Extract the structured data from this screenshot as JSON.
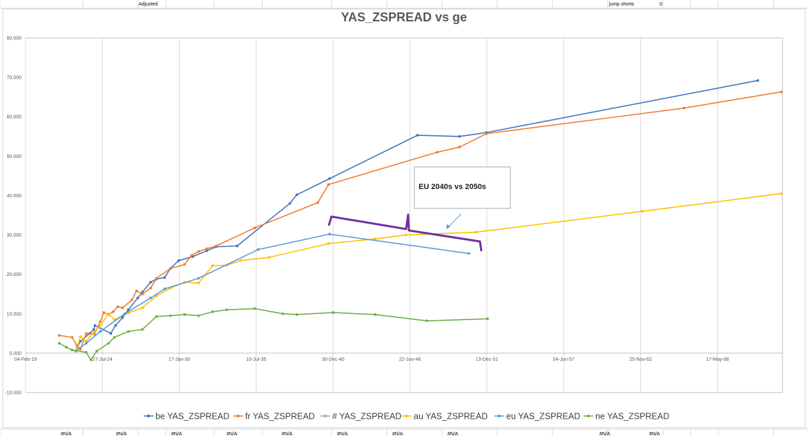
{
  "sheet": {
    "top_cells": [
      "Adjusted",
      "jump shorts",
      "0"
    ],
    "bottom_cells": [
      "#N/A",
      "#N/A",
      "#N/A",
      "#N/A",
      "#N/A",
      "#N/A",
      "#N/A",
      "#N/A",
      "#N/A",
      "#N/A"
    ]
  },
  "chart_data": {
    "type": "line",
    "title": "YAS_ZSPREAD vs ge",
    "xlabel": "",
    "ylabel": "",
    "xlim": [
      "2019-02-04",
      "2073-01-01"
    ],
    "ylim": [
      -10,
      80
    ],
    "x_tick_labels": [
      "04-Feb-19",
      "27-Jul-24",
      "17-Jan-30",
      "10-Jul-35",
      "30-Dec-40",
      "22-Jun-46",
      "13-Dec-51",
      "04-Jun-57",
      "25-Nov-62",
      "17-May-68"
    ],
    "x_ticks": [
      "2019-02-04",
      "2024-07-27",
      "2030-01-17",
      "2035-07-10",
      "2040-12-30",
      "2046-06-22",
      "2051-12-13",
      "2057-06-04",
      "2062-11-25",
      "2068-05-17"
    ],
    "y_tick_labels": [
      "-10.000",
      "0.000",
      "10.000",
      "20.000",
      "30.000",
      "40.000",
      "50.000",
      "60.000",
      "70.000",
      "80.000"
    ],
    "y_ticks": [
      -10,
      0,
      10,
      20,
      30,
      40,
      50,
      60,
      70,
      80
    ],
    "grid": "vertical",
    "legend_position": "bottom",
    "series": [
      {
        "name": "be YAS_ZSPREAD",
        "color": "#4472C4",
        "points": [
          [
            "2022-10-15",
            1.5
          ],
          [
            "2023-01-01",
            3.0
          ],
          [
            "2023-09-01",
            5.0
          ],
          [
            "2023-12-15",
            6.0
          ],
          [
            "2024-01-15",
            7.0
          ],
          [
            "2025-03-01",
            5.0
          ],
          [
            "2025-07-01",
            7.0
          ],
          [
            "2026-01-01",
            9.0
          ],
          [
            "2026-06-01",
            11.0
          ],
          [
            "2027-02-01",
            14.0
          ],
          [
            "2027-06-01",
            15.5
          ],
          [
            "2028-01-01",
            18.0
          ],
          [
            "2028-06-01",
            18.8
          ],
          [
            "2029-01-01",
            19.2
          ],
          [
            "2029-06-01",
            21.5
          ],
          [
            "2030-01-01",
            23.5
          ],
          [
            "2031-01-01",
            24.5
          ],
          [
            "2032-01-01",
            26.0
          ],
          [
            "2032-09-01",
            27.0
          ],
          [
            "2034-03-01",
            27.2
          ],
          [
            "2037-12-01",
            38.0
          ],
          [
            "2038-06-01",
            40.2
          ],
          [
            "2040-10-01",
            44.3
          ],
          [
            "2047-01-01",
            55.3
          ],
          [
            "2050-01-01",
            55.0
          ],
          [
            "2051-12-01",
            56.0
          ],
          [
            "2071-04-01",
            69.2
          ]
        ]
      },
      {
        "name": "fr YAS_ZSPREAD",
        "color": "#ED7D31",
        "points": [
          [
            "2021-07-01",
            4.5
          ],
          [
            "2022-06-01",
            4.0
          ],
          [
            "2022-10-01",
            2.0
          ],
          [
            "2023-01-01",
            1.0
          ],
          [
            "2023-06-01",
            5.0
          ],
          [
            "2024-01-01",
            4.8
          ],
          [
            "2024-06-01",
            8.0
          ],
          [
            "2024-09-01",
            10.3
          ],
          [
            "2025-01-01",
            9.8
          ],
          [
            "2025-05-01",
            10.5
          ],
          [
            "2025-09-01",
            11.8
          ],
          [
            "2026-01-01",
            11.5
          ],
          [
            "2026-09-01",
            13.5
          ],
          [
            "2027-01-01",
            15.8
          ],
          [
            "2027-06-01",
            15.0
          ],
          [
            "2028-01-01",
            16.5
          ],
          [
            "2028-06-01",
            19.0
          ],
          [
            "2029-06-01",
            21.5
          ],
          [
            "2030-06-01",
            22.5
          ],
          [
            "2030-12-01",
            24.8
          ],
          [
            "2031-06-01",
            25.8
          ],
          [
            "2032-01-01",
            26.5
          ],
          [
            "2032-09-01",
            27.2
          ],
          [
            "2035-06-01",
            31.8
          ],
          [
            "2039-12-01",
            38.2
          ],
          [
            "2040-09-01",
            42.8
          ],
          [
            "2048-06-01",
            51.0
          ],
          [
            "2050-01-01",
            52.3
          ],
          [
            "2051-12-01",
            55.7
          ],
          [
            "2066-01-01",
            62.2
          ],
          [
            "2072-12-01",
            66.3
          ]
        ]
      },
      {
        "name": "# YAS_ZSPREAD",
        "color": "#A5A5A5",
        "points": []
      },
      {
        "name": "au YAS_ZSPREAD",
        "color": "#FFC000",
        "points": [
          [
            "2022-10-01",
            1.0
          ],
          [
            "2023-01-01",
            4.2
          ],
          [
            "2023-06-01",
            3.0
          ],
          [
            "2024-01-01",
            5.5
          ],
          [
            "2024-06-01",
            7.0
          ],
          [
            "2025-01-01",
            10.0
          ],
          [
            "2025-06-01",
            8.5
          ],
          [
            "2026-06-01",
            10.2
          ],
          [
            "2027-06-01",
            11.5
          ],
          [
            "2028-06-01",
            14.5
          ],
          [
            "2029-06-01",
            16.5
          ],
          [
            "2030-06-01",
            18.0
          ],
          [
            "2031-06-01",
            17.8
          ],
          [
            "2032-06-01",
            22.2
          ],
          [
            "2033-06-01",
            22.3
          ],
          [
            "2034-06-01",
            23.5
          ],
          [
            "2036-06-01",
            24.3
          ],
          [
            "2040-09-01",
            27.8
          ],
          [
            "2044-01-01",
            29.0
          ],
          [
            "2046-03-01",
            30.0
          ],
          [
            "2051-03-01",
            30.7
          ],
          [
            "2063-01-01",
            36.0
          ],
          [
            "2072-12-01",
            40.5
          ]
        ]
      },
      {
        "name": "eu YAS_ZSPREAD",
        "color": "#5B9BD5",
        "points": [
          [
            "2022-09-01",
            0.5
          ],
          [
            "2023-06-01",
            2.5
          ],
          [
            "2024-06-01",
            5.5
          ],
          [
            "2026-03-01",
            10.0
          ],
          [
            "2028-01-01",
            14.0
          ],
          [
            "2029-01-01",
            16.3
          ],
          [
            "2031-06-01",
            19.0
          ],
          [
            "2035-09-01",
            26.3
          ],
          [
            "2040-10-01",
            30.2
          ],
          [
            "2050-09-01",
            25.3
          ]
        ]
      },
      {
        "name": "ne YAS_ZSPREAD",
        "color": "#70AD47",
        "points": [
          [
            "2021-07-01",
            2.5
          ],
          [
            "2022-01-01",
            1.5
          ],
          [
            "2022-06-01",
            0.8
          ],
          [
            "2023-06-01",
            0.2
          ],
          [
            "2023-10-01",
            -1.7
          ],
          [
            "2024-03-01",
            0.5
          ],
          [
            "2025-01-01",
            2.5
          ],
          [
            "2025-06-01",
            4.0
          ],
          [
            "2026-06-01",
            5.5
          ],
          [
            "2027-06-01",
            6.0
          ],
          [
            "2028-06-01",
            9.3
          ],
          [
            "2029-06-01",
            9.5
          ],
          [
            "2030-06-01",
            9.8
          ],
          [
            "2031-06-01",
            9.5
          ],
          [
            "2032-06-01",
            10.5
          ],
          [
            "2033-06-01",
            11.0
          ],
          [
            "2035-06-01",
            11.3
          ],
          [
            "2037-06-01",
            10.0
          ],
          [
            "2038-06-01",
            9.8
          ],
          [
            "2041-01-01",
            10.3
          ],
          [
            "2044-01-01",
            9.8
          ],
          [
            "2047-09-01",
            8.2
          ],
          [
            "2052-01-01",
            8.7
          ]
        ]
      }
    ],
    "annotations": [
      {
        "text": "EU 2040s vs 2050s"
      }
    ]
  }
}
